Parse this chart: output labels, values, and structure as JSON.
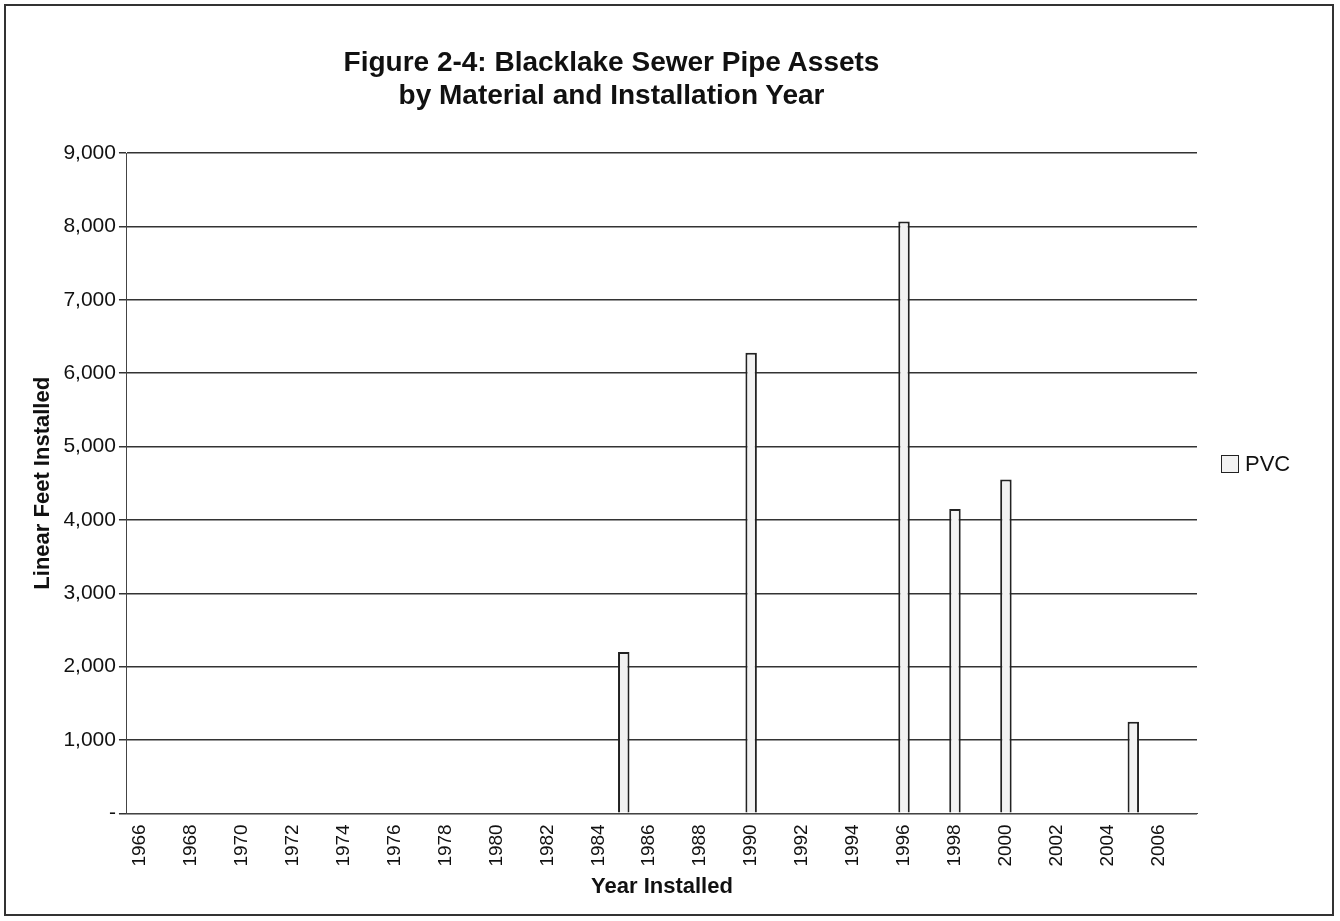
{
  "chart_data": {
    "type": "bar",
    "title": "Figure 2-4: Blacklake Sewer Pipe Assets\nby Material and Installation Year",
    "xlabel": "Year Installed",
    "ylabel": "Linear Feet Installed",
    "categories": [
      "1966",
      null,
      "1968",
      null,
      "1970",
      null,
      "1972",
      null,
      "1974",
      null,
      "1976",
      null,
      "1978",
      null,
      "1980",
      null,
      "1982",
      null,
      "1984",
      null,
      "1986",
      null,
      "1988",
      null,
      "1990",
      null,
      "1992",
      null,
      "1994",
      null,
      "1996",
      null,
      "1998",
      null,
      "2000",
      null,
      "2002",
      null,
      "2004",
      null,
      "2006",
      null
    ],
    "series": [
      {
        "name": "PVC",
        "color": "#f2f2f2",
        "values": [
          null,
          null,
          null,
          null,
          null,
          null,
          null,
          null,
          null,
          null,
          null,
          null,
          null,
          null,
          null,
          null,
          null,
          null,
          null,
          2200,
          null,
          null,
          null,
          null,
          6280,
          null,
          null,
          null,
          null,
          null,
          8070,
          null,
          4150,
          null,
          4550,
          null,
          null,
          null,
          null,
          1250,
          null,
          null
        ]
      }
    ],
    "ylim": [
      0,
      9000
    ],
    "yticks": [
      {
        "value": 0,
        "label": "-"
      },
      {
        "value": 1000,
        "label": "1,000"
      },
      {
        "value": 2000,
        "label": "2,000"
      },
      {
        "value": 3000,
        "label": "3,000"
      },
      {
        "value": 4000,
        "label": "4,000"
      },
      {
        "value": 5000,
        "label": "5,000"
      },
      {
        "value": 6000,
        "label": "6,000"
      },
      {
        "value": 7000,
        "label": "7,000"
      },
      {
        "value": 8000,
        "label": "8,000"
      },
      {
        "value": 9000,
        "label": "9,000"
      }
    ],
    "grid": "y",
    "legend": "right"
  }
}
